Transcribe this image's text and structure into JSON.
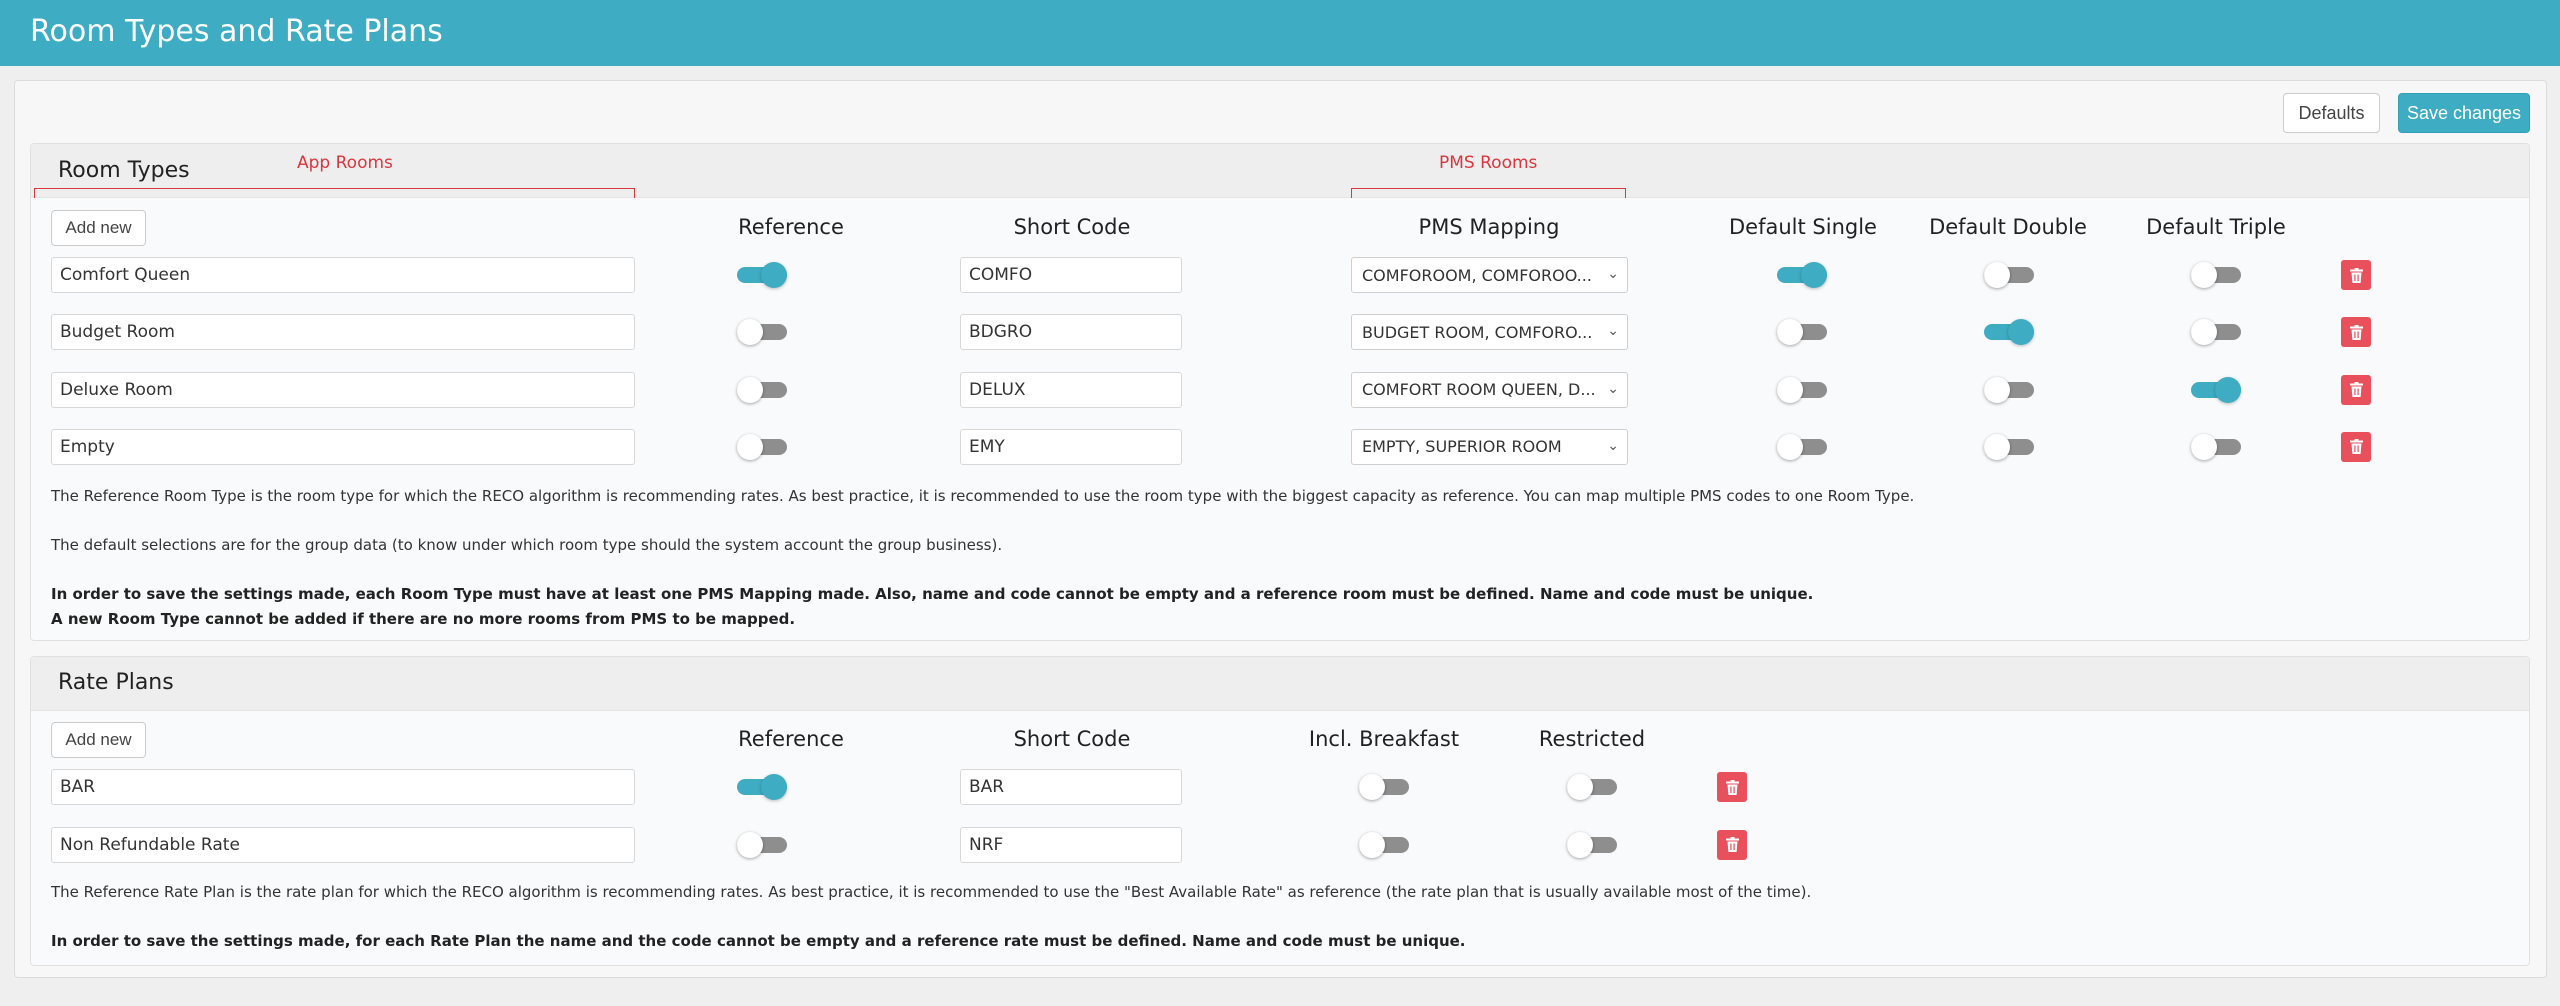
{
  "header": {
    "title": "Room Types and Rate Plans"
  },
  "toolbar": {
    "defaults_label": "Defaults",
    "save_label": "Save changes"
  },
  "room_types": {
    "title": "Room Types",
    "annotation_app": "App Rooms",
    "annotation_pms": "PMS Rooms",
    "add_label": "Add new",
    "columns": {
      "reference": "Reference",
      "short_code": "Short Code",
      "pms_mapping": "PMS Mapping",
      "default_single": "Default Single",
      "default_double": "Default Double",
      "default_triple": "Default Triple"
    },
    "rows": [
      {
        "name": "Comfort Queen",
        "reference": true,
        "code": "COMFO",
        "pms": "COMFOROOM, COMFOROO...",
        "single": true,
        "double": false,
        "triple": false
      },
      {
        "name": "Budget Room",
        "reference": false,
        "code": "BDGRO",
        "pms": "BUDGET ROOM, COMFORO...",
        "single": false,
        "double": true,
        "triple": false
      },
      {
        "name": "Deluxe Room",
        "reference": false,
        "code": "DELUX",
        "pms": "COMFORT ROOM QUEEN, D...",
        "single": false,
        "double": false,
        "triple": true
      },
      {
        "name": "Empty",
        "reference": false,
        "code": "EMY",
        "pms": "EMPTY, SUPERIOR ROOM",
        "single": false,
        "double": false,
        "triple": false
      }
    ],
    "note1": "The Reference Room Type is the room type for which the RECO algorithm is recommending rates. As best practice, it is recommended to use the room type with the biggest capacity as reference. You can map multiple PMS codes to one Room Type.",
    "note2": "The default selections are for the group data (to know under which room type should the system account the group business).",
    "note3": "In order to save the settings made, each Room Type must have at least one PMS Mapping made. Also, name and code cannot be empty and a reference room must be defined. Name and code must be unique.",
    "note4": "A new Room Type cannot be added if there are no more rooms from PMS to be mapped."
  },
  "rate_plans": {
    "title": "Rate Plans",
    "add_label": "Add new",
    "columns": {
      "reference": "Reference",
      "short_code": "Short Code",
      "breakfast": "Incl. Breakfast",
      "restricted": "Restricted"
    },
    "rows": [
      {
        "name": "BAR",
        "reference": true,
        "code": "BAR",
        "breakfast": false,
        "restricted": false
      },
      {
        "name": "Non Refundable Rate",
        "reference": false,
        "code": "NRF",
        "breakfast": false,
        "restricted": false
      }
    ],
    "note1": "The Reference Rate Plan is the rate plan for which the RECO algorithm is recommending rates. As best practice, it is recommended to use the \"Best Available Rate\" as reference (the rate plan that is usually available most of the time).",
    "note2": "In order to save the settings made, for each Rate Plan the name and the code cannot be empty and a reference rate must be defined. Name and code must be unique."
  },
  "colors": {
    "accent": "#3eacc2",
    "danger": "#e8505b",
    "annotation": "#d9363e"
  },
  "icons": {
    "delete": "trash-icon",
    "dropdown": "chevron-down-icon"
  }
}
